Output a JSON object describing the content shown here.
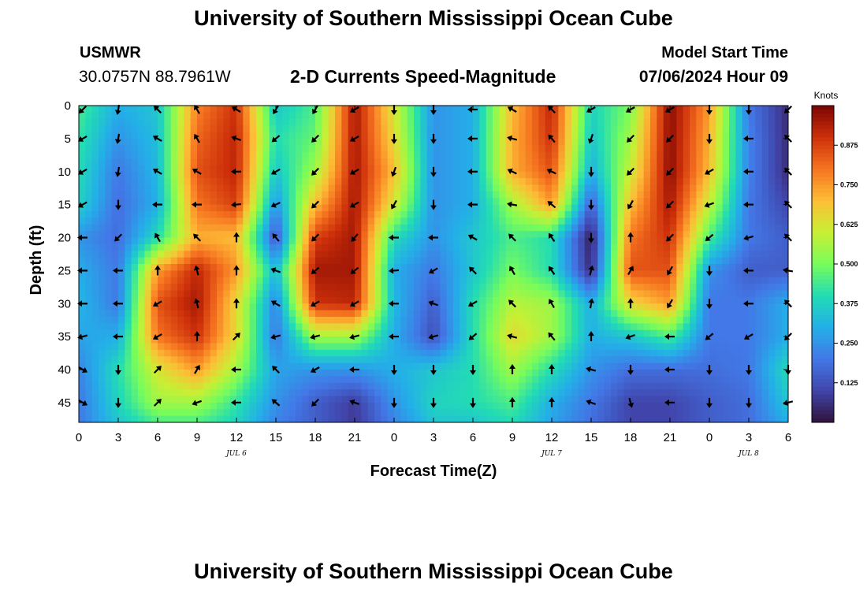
{
  "header": {
    "title": "University of Southern Mississippi Ocean Cube",
    "station": "USMWR",
    "coordinates": "30.0757N  88.7961W",
    "subtitle": "2-D Currents Speed-Magnitude",
    "model_start_label": "Model Start Time",
    "model_start_value": "07/06/2024 Hour 09"
  },
  "footer": {
    "title": "University of Southern Mississippi Ocean Cube"
  },
  "chart_data": {
    "type": "heatmap",
    "title": "2-D Currents Speed-Magnitude",
    "xlabel": "Forecast Time(Z)",
    "ylabel": "Depth (ft)",
    "x_ticks": [
      "0",
      "3",
      "6",
      "9",
      "12",
      "15",
      "18",
      "21",
      "0",
      "3",
      "6",
      "9",
      "12",
      "15",
      "18",
      "21",
      "0",
      "3",
      "6"
    ],
    "x_hours": [
      0,
      3,
      6,
      9,
      12,
      15,
      18,
      21,
      24,
      27,
      30,
      33,
      36,
      39,
      42,
      45,
      48,
      51,
      54
    ],
    "xlim": [
      0,
      54
    ],
    "date_labels": [
      {
        "label": "JUL 6",
        "hour": 12
      },
      {
        "label": "JUL 7",
        "hour": 36
      },
      {
        "label": "JUL 8",
        "hour": 51
      }
    ],
    "y_ticks": [
      0,
      5,
      10,
      15,
      20,
      25,
      30,
      35,
      40,
      45
    ],
    "ylim": [
      0,
      48
    ],
    "colorbar": {
      "unit": "Knots",
      "ticks": [
        "0.125",
        "0.250",
        "0.375",
        "0.500",
        "0.625",
        "0.750",
        "0.875"
      ],
      "tick_values": [
        0.125,
        0.25,
        0.375,
        0.5,
        0.625,
        0.75,
        0.875
      ],
      "range": [
        0,
        1.0
      ]
    },
    "speed_grid": {
      "depths": [
        0,
        5,
        10,
        15,
        20,
        25,
        30,
        35,
        40,
        45,
        48
      ],
      "hours": [
        0,
        3,
        6,
        9,
        12,
        15,
        18,
        21,
        24,
        27,
        30,
        33,
        36,
        39,
        42,
        45,
        48,
        51,
        54
      ],
      "values": [
        [
          0.45,
          0.3,
          0.35,
          0.78,
          0.9,
          0.35,
          0.45,
          0.95,
          0.62,
          0.25,
          0.3,
          0.7,
          0.92,
          0.38,
          0.5,
          0.98,
          0.75,
          0.2,
          0.05
        ],
        [
          0.42,
          0.25,
          0.33,
          0.82,
          0.92,
          0.4,
          0.48,
          0.95,
          0.65,
          0.25,
          0.3,
          0.72,
          0.9,
          0.35,
          0.55,
          0.98,
          0.72,
          0.22,
          0.05
        ],
        [
          0.4,
          0.2,
          0.32,
          0.85,
          0.92,
          0.35,
          0.55,
          0.95,
          0.7,
          0.25,
          0.3,
          0.72,
          0.85,
          0.3,
          0.6,
          0.98,
          0.7,
          0.22,
          0.05
        ],
        [
          0.38,
          0.18,
          0.3,
          0.8,
          0.88,
          0.25,
          0.7,
          0.95,
          0.62,
          0.25,
          0.3,
          0.55,
          0.75,
          0.15,
          0.7,
          0.95,
          0.6,
          0.2,
          0.1
        ],
        [
          0.25,
          0.18,
          0.4,
          0.72,
          0.7,
          0.12,
          0.88,
          0.95,
          0.4,
          0.25,
          0.35,
          0.45,
          0.4,
          0.02,
          0.8,
          0.9,
          0.45,
          0.2,
          0.15
        ],
        [
          0.3,
          0.2,
          0.75,
          0.92,
          0.75,
          0.32,
          0.95,
          0.95,
          0.3,
          0.2,
          0.35,
          0.5,
          0.4,
          0.05,
          0.85,
          0.85,
          0.25,
          0.15,
          0.15
        ],
        [
          0.32,
          0.2,
          0.85,
          0.95,
          0.65,
          0.22,
          0.9,
          0.92,
          0.32,
          0.15,
          0.4,
          0.58,
          0.55,
          0.3,
          0.65,
          0.75,
          0.2,
          0.2,
          0.3
        ],
        [
          0.28,
          0.3,
          0.8,
          0.9,
          0.65,
          0.2,
          0.55,
          0.55,
          0.3,
          0.12,
          0.4,
          0.65,
          0.55,
          0.3,
          0.35,
          0.45,
          0.2,
          0.2,
          0.3
        ],
        [
          0.22,
          0.4,
          0.62,
          0.75,
          0.55,
          0.28,
          0.25,
          0.25,
          0.3,
          0.35,
          0.4,
          0.55,
          0.4,
          0.25,
          0.18,
          0.18,
          0.18,
          0.2,
          0.4
        ],
        [
          0.2,
          0.38,
          0.55,
          0.55,
          0.42,
          0.25,
          0.15,
          0.08,
          0.25,
          0.38,
          0.4,
          0.45,
          0.3,
          0.2,
          0.1,
          0.1,
          0.15,
          0.18,
          0.35
        ],
        [
          0.2,
          0.35,
          0.45,
          0.45,
          0.38,
          0.22,
          0.15,
          0.08,
          0.22,
          0.35,
          0.35,
          0.4,
          0.28,
          0.18,
          0.1,
          0.1,
          0.15,
          0.18,
          0.3
        ]
      ]
    },
    "vectors": {
      "depths": [
        0,
        5,
        10,
        15,
        20,
        25,
        30,
        35,
        40,
        45
      ],
      "hours": [
        0,
        3,
        6,
        9,
        12,
        15,
        18,
        21,
        24,
        27,
        30,
        33,
        36,
        39,
        42,
        45,
        48,
        51,
        54
      ],
      "angles_deg": [
        [
          135,
          100,
          225,
          240,
          210,
          120,
          120,
          150,
          90,
          90,
          180,
          210,
          225,
          150,
          150,
          150,
          90,
          90,
          135
        ],
        [
          150,
          100,
          210,
          240,
          200,
          140,
          135,
          150,
          90,
          90,
          180,
          195,
          230,
          110,
          135,
          135,
          90,
          180,
          225
        ],
        [
          150,
          100,
          210,
          210,
          180,
          150,
          135,
          150,
          110,
          90,
          180,
          205,
          205,
          90,
          135,
          135,
          150,
          180,
          225
        ],
        [
          150,
          90,
          180,
          180,
          175,
          155,
          135,
          150,
          120,
          90,
          180,
          190,
          220,
          90,
          120,
          135,
          160,
          180,
          225
        ],
        [
          180,
          135,
          240,
          225,
          270,
          230,
          135,
          130,
          180,
          180,
          210,
          225,
          235,
          90,
          270,
          135,
          140,
          165,
          225
        ],
        [
          180,
          180,
          270,
          255,
          270,
          200,
          140,
          140,
          175,
          150,
          225,
          240,
          235,
          285,
          300,
          120,
          90,
          180,
          190
        ],
        [
          180,
          180,
          150,
          255,
          270,
          210,
          150,
          150,
          180,
          200,
          150,
          225,
          240,
          280,
          270,
          120,
          90,
          180,
          225
        ],
        [
          165,
          180,
          150,
          270,
          315,
          165,
          165,
          165,
          180,
          165,
          140,
          195,
          230,
          270,
          160,
          180,
          140,
          150,
          135
        ],
        [
          30,
          90,
          315,
          300,
          180,
          225,
          150,
          180,
          90,
          90,
          90,
          270,
          270,
          195,
          90,
          180,
          90,
          90,
          90
        ],
        [
          30,
          90,
          315,
          160,
          180,
          220,
          135,
          200,
          90,
          90,
          90,
          270,
          270,
          200,
          75,
          180,
          90,
          90,
          165
        ]
      ]
    }
  }
}
